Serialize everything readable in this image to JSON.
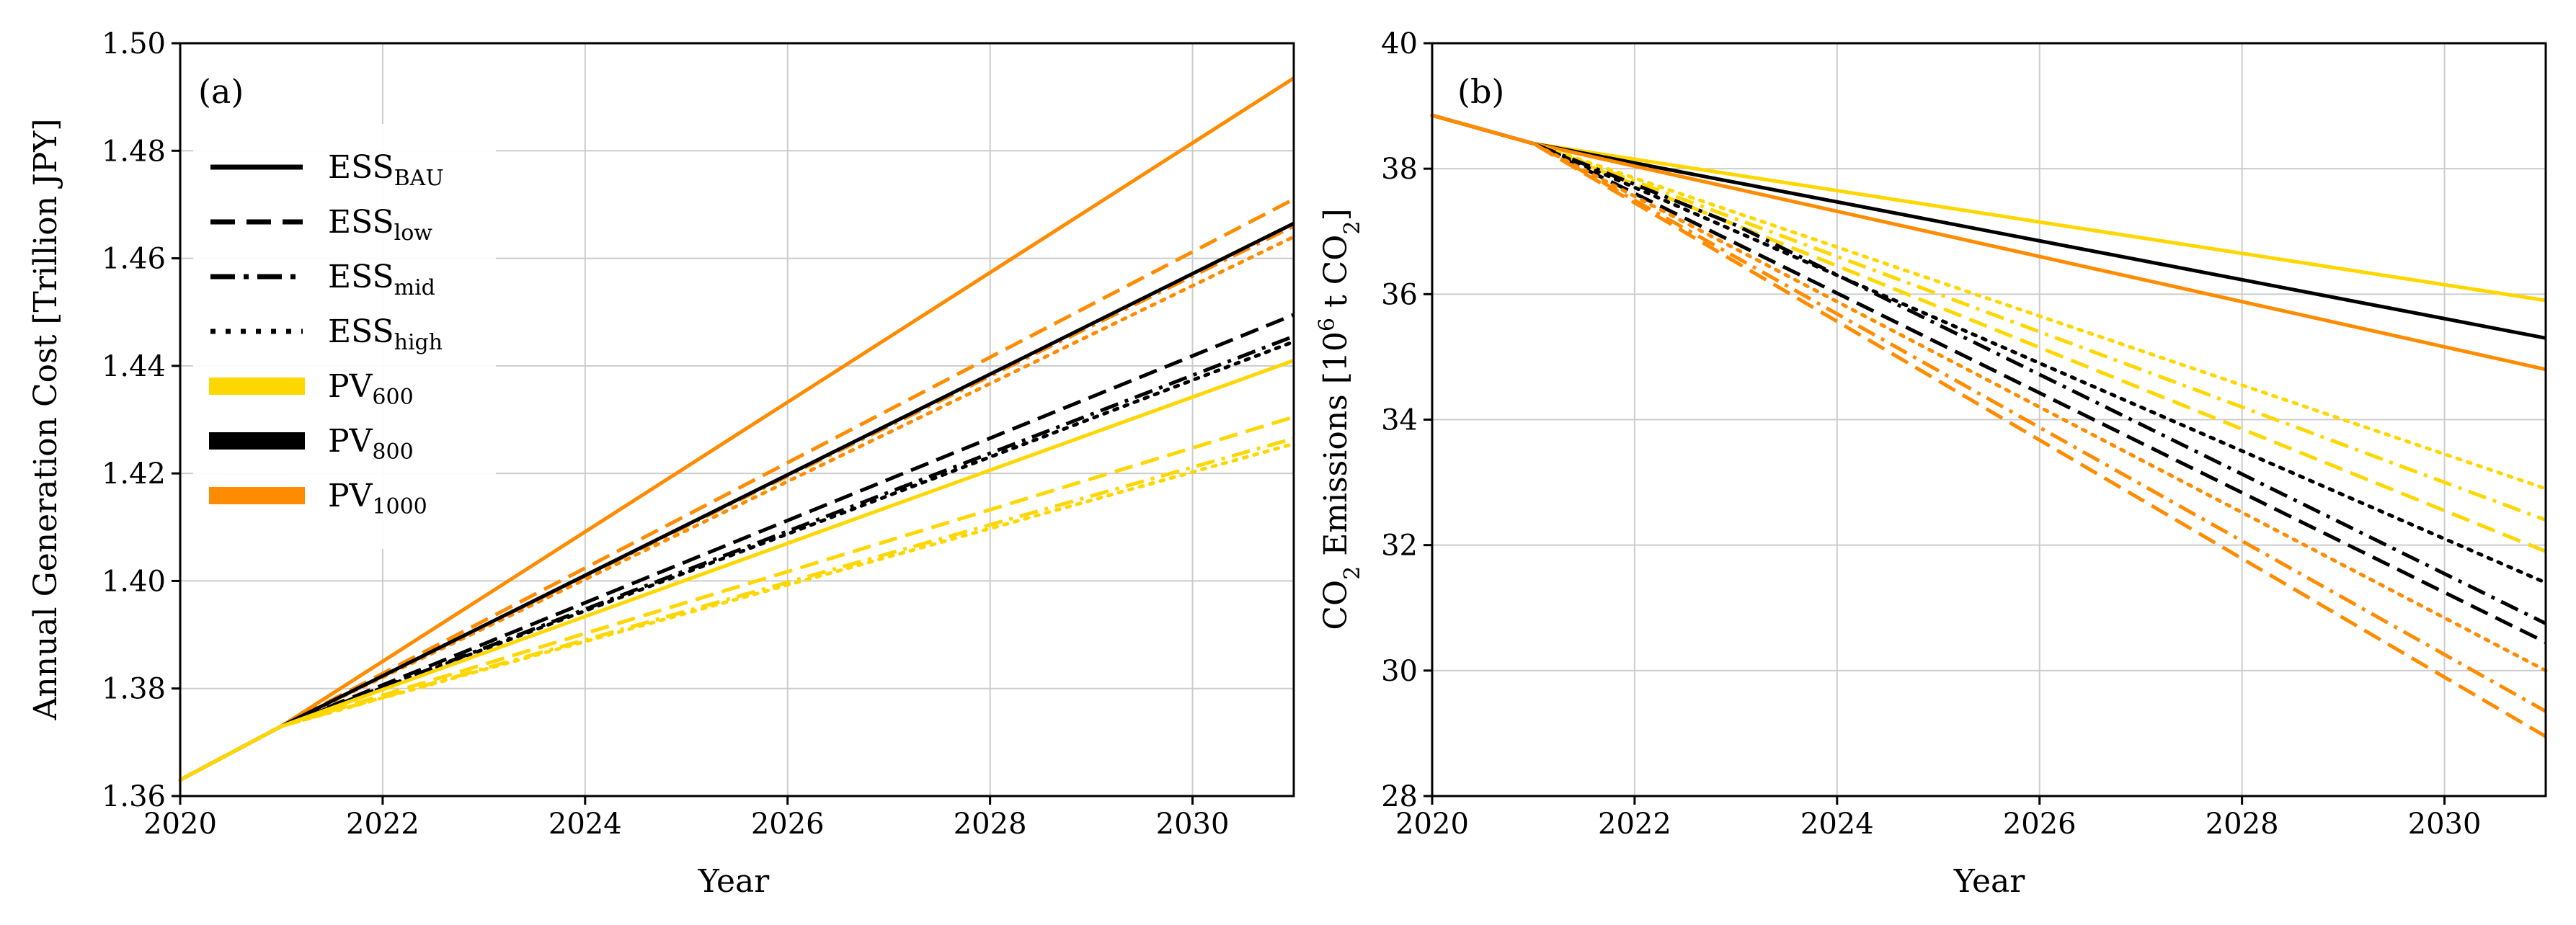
{
  "chart_data": [
    {
      "type": "line",
      "panel": "(a)",
      "xlabel": "Year",
      "ylabel": "Annual Generation Cost [Trillion JPY]",
      "xlim": [
        2020,
        2031
      ],
      "ylim": [
        1.36,
        1.5
      ],
      "xticks": [
        "2020",
        "2022",
        "2024",
        "2026",
        "2028",
        "2030"
      ],
      "yticks": [
        "1.36",
        "1.38",
        "1.40",
        "1.42",
        "1.44",
        "1.46",
        "1.48",
        "1.50"
      ],
      "grid": true,
      "legend_position": "upper-left",
      "legend": [
        {
          "base": "ESS",
          "sub": "BAU",
          "style": "solid",
          "color": "#000000"
        },
        {
          "base": "ESS",
          "sub": "low",
          "style": "dashed",
          "color": "#000000"
        },
        {
          "base": "ESS",
          "sub": "mid",
          "style": "dashdot",
          "color": "#000000"
        },
        {
          "base": "ESS",
          "sub": "high",
          "style": "dotted",
          "color": "#000000"
        },
        {
          "base": "PV",
          "sub": "600",
          "style": "patch",
          "color": "#FFD700"
        },
        {
          "base": "PV",
          "sub": "800",
          "style": "patch",
          "color": "#000000"
        },
        {
          "base": "PV",
          "sub": "1000",
          "style": "patch",
          "color": "#FF8C00"
        }
      ],
      "series": [
        {
          "name": "PV1000 ESS_BAU",
          "color": "#FF8C00",
          "style": "solid",
          "x": [
            2020,
            2021,
            2031
          ],
          "y": [
            1.363,
            1.373,
            1.4935
          ]
        },
        {
          "name": "PV1000 ESS_low",
          "color": "#FF8C00",
          "style": "dashed",
          "x": [
            2020,
            2021,
            2031
          ],
          "y": [
            1.363,
            1.373,
            1.471
          ]
        },
        {
          "name": "PV1000 ESS_mid",
          "color": "#FF8C00",
          "style": "dashdot",
          "x": [
            2020,
            2021,
            2031
          ],
          "y": [
            1.363,
            1.373,
            1.466
          ]
        },
        {
          "name": "PV1000 ESS_high",
          "color": "#FF8C00",
          "style": "dotted",
          "x": [
            2020,
            2021,
            2031
          ],
          "y": [
            1.363,
            1.373,
            1.464
          ]
        },
        {
          "name": "PV800 ESS_BAU",
          "color": "#000000",
          "style": "solid",
          "x": [
            2020,
            2021,
            2031
          ],
          "y": [
            1.363,
            1.373,
            1.4665
          ]
        },
        {
          "name": "PV800 ESS_low",
          "color": "#000000",
          "style": "dashed",
          "x": [
            2020,
            2021,
            2031
          ],
          "y": [
            1.363,
            1.373,
            1.4495
          ]
        },
        {
          "name": "PV800 ESS_mid",
          "color": "#000000",
          "style": "dashdot",
          "x": [
            2020,
            2021,
            2031
          ],
          "y": [
            1.363,
            1.373,
            1.4455
          ]
        },
        {
          "name": "PV800 ESS_high",
          "color": "#000000",
          "style": "dotted",
          "x": [
            2020,
            2021,
            2031
          ],
          "y": [
            1.363,
            1.373,
            1.4445
          ]
        },
        {
          "name": "PV600 ESS_BAU",
          "color": "#FFD700",
          "style": "solid",
          "x": [
            2020,
            2021,
            2031
          ],
          "y": [
            1.363,
            1.373,
            1.441
          ]
        },
        {
          "name": "PV600 ESS_low",
          "color": "#FFD700",
          "style": "dashed",
          "x": [
            2020,
            2021,
            2031
          ],
          "y": [
            1.363,
            1.373,
            1.4305
          ]
        },
        {
          "name": "PV600 ESS_mid",
          "color": "#FFD700",
          "style": "dashdot",
          "x": [
            2020,
            2021,
            2031
          ],
          "y": [
            1.363,
            1.373,
            1.4265
          ]
        },
        {
          "name": "PV600 ESS_high",
          "color": "#FFD700",
          "style": "dotted",
          "x": [
            2020,
            2021,
            2031
          ],
          "y": [
            1.363,
            1.373,
            1.4255
          ]
        }
      ]
    },
    {
      "type": "line",
      "panel": "(b)",
      "xlabel": "Year",
      "ylabel": "CO2 Emissions [10^6 t CO2]",
      "ylabel_parts": {
        "a": "CO",
        "b": "2",
        "c": " Emissions [10",
        "d": "6",
        "e": " t CO",
        "f": "2",
        "g": "]"
      },
      "xlim": [
        2020,
        2031
      ],
      "ylim": [
        28,
        40
      ],
      "xticks": [
        "2020",
        "2022",
        "2024",
        "2026",
        "2028",
        "2030"
      ],
      "yticks": [
        "28",
        "30",
        "32",
        "34",
        "36",
        "38",
        "40"
      ],
      "grid": true,
      "series": [
        {
          "name": "PV600 ESS_BAU",
          "color": "#FFD700",
          "style": "solid",
          "x": [
            2020,
            2021,
            2031
          ],
          "y": [
            38.85,
            38.4,
            35.9
          ]
        },
        {
          "name": "PV800 ESS_BAU",
          "color": "#000000",
          "style": "solid",
          "x": [
            2020,
            2021,
            2031
          ],
          "y": [
            38.85,
            38.4,
            35.3
          ]
        },
        {
          "name": "PV1000 ESS_BAU",
          "color": "#FF8C00",
          "style": "solid",
          "x": [
            2020,
            2021,
            2031
          ],
          "y": [
            38.85,
            38.4,
            34.8
          ]
        },
        {
          "name": "PV600 ESS_high",
          "color": "#FFD700",
          "style": "dotted",
          "x": [
            2020,
            2021,
            2031
          ],
          "y": [
            38.85,
            38.4,
            32.9
          ]
        },
        {
          "name": "PV600 ESS_mid",
          "color": "#FFD700",
          "style": "dashdot",
          "x": [
            2020,
            2021,
            2031
          ],
          "y": [
            38.85,
            38.4,
            32.4
          ]
        },
        {
          "name": "PV600 ESS_low",
          "color": "#FFD700",
          "style": "dashed",
          "x": [
            2020,
            2021,
            2031
          ],
          "y": [
            38.85,
            38.4,
            31.9
          ]
        },
        {
          "name": "PV800 ESS_high",
          "color": "#000000",
          "style": "dotted",
          "x": [
            2020,
            2021,
            2031
          ],
          "y": [
            38.85,
            38.4,
            31.4
          ]
        },
        {
          "name": "PV800 ESS_mid",
          "color": "#000000",
          "style": "dashdot",
          "x": [
            2020,
            2021,
            2023,
            2031
          ],
          "y": [
            38.85,
            38.4,
            37.1,
            30.75
          ]
        },
        {
          "name": "PV800 ESS_low",
          "color": "#000000",
          "style": "dashed",
          "x": [
            2020,
            2021,
            2031
          ],
          "y": [
            38.85,
            38.4,
            30.45
          ]
        },
        {
          "name": "PV1000 ESS_high",
          "color": "#FF8C00",
          "style": "dotted",
          "x": [
            2020,
            2021,
            2031
          ],
          "y": [
            38.85,
            38.4,
            30.0
          ]
        },
        {
          "name": "PV1000 ESS_mid",
          "color": "#FF8C00",
          "style": "dashdot",
          "x": [
            2020,
            2021,
            2031
          ],
          "y": [
            38.85,
            38.4,
            29.35
          ]
        },
        {
          "name": "PV1000 ESS_low",
          "color": "#FF8C00",
          "style": "dashed",
          "x": [
            2020,
            2021,
            2031
          ],
          "y": [
            38.85,
            38.4,
            28.95
          ]
        }
      ]
    }
  ]
}
